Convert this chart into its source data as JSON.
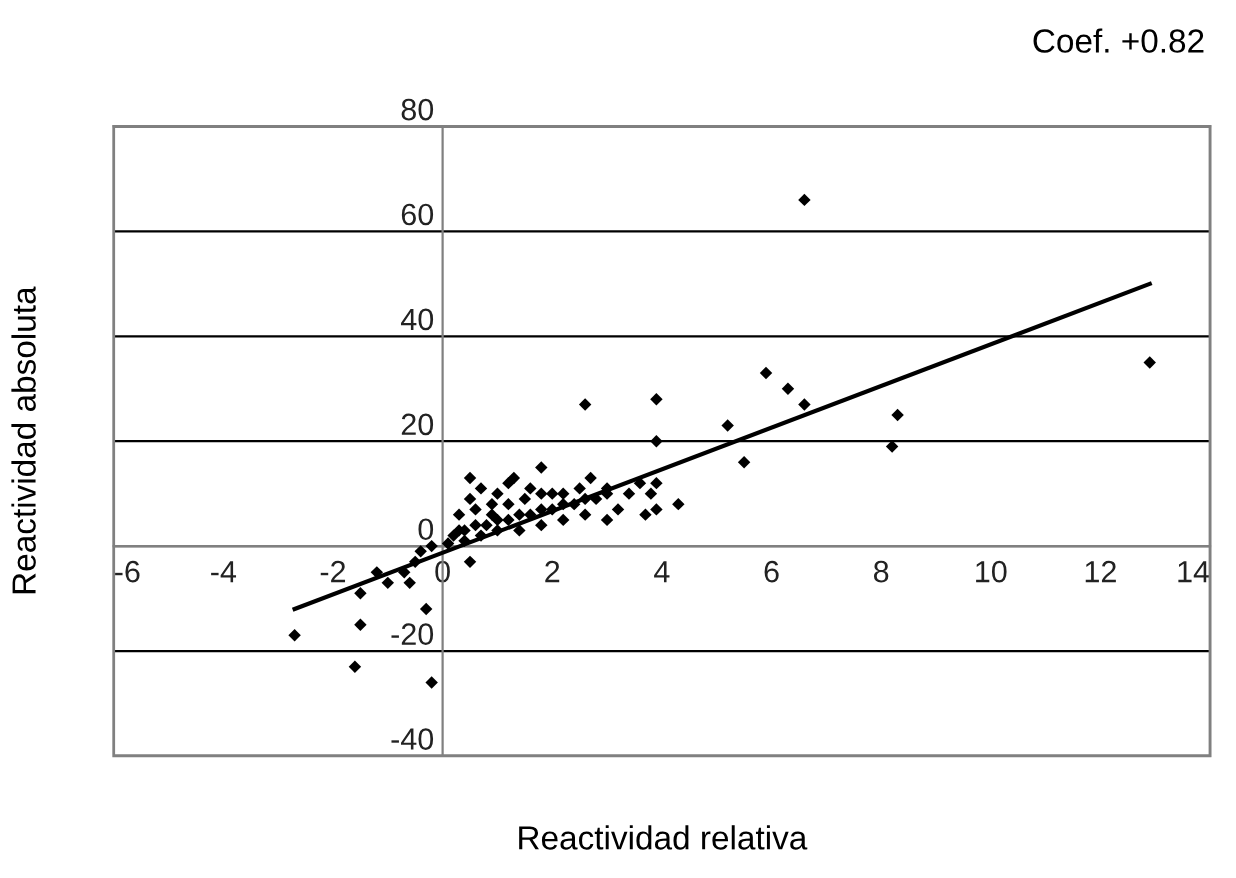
{
  "chart_data": {
    "type": "scatter",
    "annotations": [
      "Coef. +0.82"
    ],
    "xlabel": "Reactividad relativa",
    "ylabel": "Reactividad absoluta",
    "xlim": [
      -6,
      14
    ],
    "xticks": [
      -6,
      -4,
      -2,
      0,
      2,
      4,
      6,
      8,
      10,
      12,
      14
    ],
    "ylim": [
      -40,
      80
    ],
    "yticks": [
      -40,
      -20,
      0,
      20,
      40,
      60,
      80
    ],
    "grid": "y",
    "legend": false,
    "series": [
      {
        "color": "#000000",
        "marker": "diamond",
        "x": [
          -2.7,
          -1.5,
          -1.6,
          -1.5,
          -1.2,
          -1.0,
          -0.7,
          -0.6,
          -0.5,
          -0.3,
          -0.2,
          -0.4,
          -0.2,
          0.1,
          0.3,
          0.5,
          0.5,
          0.5,
          0.7,
          0.9,
          1.0,
          1.2,
          1.3,
          1.6,
          1.8,
          2.0,
          2.6,
          2.5,
          2.7,
          3.0,
          3.2,
          3.4,
          3.6,
          3.8,
          3.9,
          3.9,
          3.9,
          3.9,
          3.7,
          4.3,
          5.2,
          5.5,
          5.9,
          6.3,
          6.6,
          6.6,
          8.2,
          8.3,
          12.9,
          0.2,
          0.4,
          0.6,
          0.8,
          1.0,
          1.2,
          1.4,
          1.6,
          1.8,
          2.0,
          2.2,
          2.4,
          2.6,
          2.8,
          3.0,
          0.3,
          0.6,
          0.9,
          1.2,
          1.5,
          1.8,
          2.2,
          0.4,
          0.7,
          1.0,
          1.4,
          1.8,
          2.2,
          2.6,
          3.0
        ],
        "values": [
          -17,
          -15,
          -23,
          -9,
          -5,
          -7,
          -5,
          -7,
          -3,
          -12,
          -26,
          -1,
          0,
          0.5,
          3,
          -3,
          13,
          9,
          11,
          6,
          10,
          12,
          13,
          11,
          15,
          10,
          27,
          11,
          13,
          11,
          7,
          10,
          12,
          10,
          28,
          20,
          12,
          7,
          6,
          8,
          23,
          16,
          33,
          30,
          66,
          27,
          19,
          25,
          35,
          2,
          3,
          4,
          4,
          5,
          5,
          6,
          6,
          7,
          7,
          8,
          8,
          9,
          9,
          10,
          6,
          7,
          8,
          8,
          9,
          10,
          10,
          1,
          2,
          3,
          3,
          4,
          5,
          6,
          5
        ]
      },
      {
        "type": "line",
        "color": "#000000",
        "marker": "none",
        "line_style": "solid",
        "x": [
          -2.7,
          12.9
        ],
        "values": [
          -12,
          50
        ]
      }
    ]
  }
}
